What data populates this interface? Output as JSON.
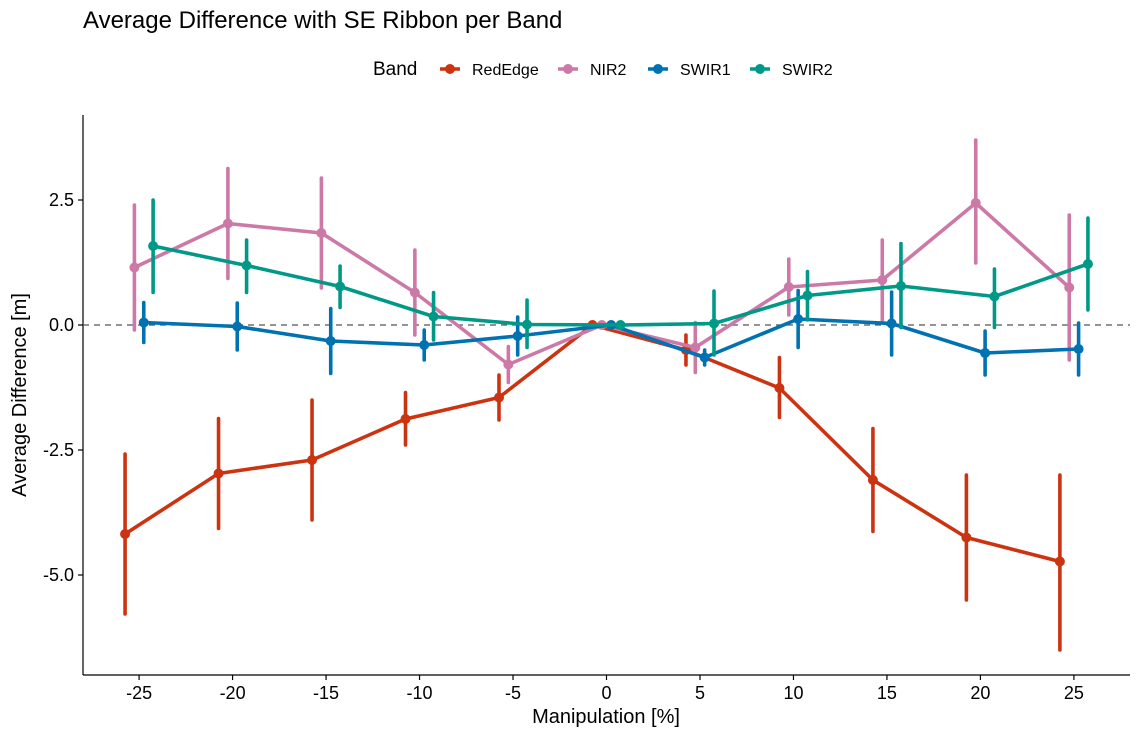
{
  "chart_data": {
    "type": "line",
    "title": "Average Difference with SE Ribbon per Band",
    "xlabel": "Manipulation [%]",
    "ylabel": "Average Difference [m]",
    "xlim": [
      -28,
      28
    ],
    "ylim": [
      -7,
      4.2
    ],
    "x_ticks": [
      -25,
      -20,
      -15,
      -10,
      -5,
      0,
      5,
      10,
      15,
      20,
      25
    ],
    "x_tick_labels": [
      "-25",
      "-20",
      "-15",
      "-10",
      "-5",
      "0",
      "5",
      "10",
      "15",
      "20",
      "25"
    ],
    "y_ticks": [
      2.5,
      0,
      -2.5,
      -5
    ],
    "y_tick_labels": [
      "2.5",
      "0.0",
      "-2.5",
      "-5.0"
    ],
    "reference_line": 0,
    "grid": false,
    "legend": {
      "title": "Band",
      "position": "top"
    },
    "series": [
      {
        "name": "RedEdge",
        "color": "#CC3311",
        "dodge": -0.75,
        "x": [
          -25,
          -20,
          -15,
          -10,
          -5,
          0,
          5,
          10,
          15,
          20,
          25
        ],
        "y": [
          -4.18,
          -2.97,
          -2.7,
          -1.88,
          -1.45,
          0.0,
          -0.5,
          -1.26,
          -3.1,
          -4.25,
          -4.73
        ],
        "lower": [
          -5.78,
          -4.07,
          -3.9,
          -2.4,
          -1.9,
          0.0,
          -0.8,
          -1.85,
          -4.13,
          -5.5,
          -6.5
        ],
        "upper": [
          -2.58,
          -1.87,
          -1.5,
          -1.35,
          -1.0,
          0.0,
          -0.2,
          -0.65,
          -2.07,
          -3.0,
          -3.0
        ]
      },
      {
        "name": "NIR2",
        "color": "#CC79A7",
        "dodge": -0.25,
        "x": [
          -25,
          -20,
          -15,
          -10,
          -5,
          0,
          5,
          10,
          15,
          20,
          25
        ],
        "y": [
          1.15,
          2.03,
          1.84,
          0.65,
          -0.79,
          0.0,
          -0.45,
          0.76,
          0.9,
          2.44,
          0.75
        ],
        "lower": [
          -0.1,
          0.93,
          0.74,
          -0.2,
          -1.15,
          0.0,
          -0.95,
          0.2,
          0.1,
          1.24,
          -0.7
        ],
        "upper": [
          2.4,
          3.13,
          2.94,
          1.5,
          -0.43,
          0.0,
          0.05,
          1.32,
          1.7,
          3.7,
          2.2
        ]
      },
      {
        "name": "SWIR1",
        "color": "#0072B2",
        "dodge": 0.25,
        "x": [
          -25,
          -20,
          -15,
          -10,
          -5,
          0,
          5,
          10,
          15,
          20,
          25
        ],
        "y": [
          0.05,
          -0.03,
          -0.32,
          -0.4,
          -0.22,
          0.0,
          -0.65,
          0.12,
          0.03,
          -0.56,
          -0.48
        ],
        "lower": [
          -0.35,
          -0.5,
          -0.97,
          -0.7,
          -0.6,
          0.0,
          -0.8,
          -0.45,
          -0.6,
          -1.0,
          -1.0
        ],
        "upper": [
          0.45,
          0.44,
          0.33,
          -0.1,
          0.16,
          0.0,
          -0.5,
          0.69,
          0.66,
          -0.12,
          0.04
        ]
      },
      {
        "name": "SWIR2",
        "color": "#009988",
        "dodge": 0.75,
        "x": [
          -25,
          -20,
          -15,
          -10,
          -5,
          0,
          5,
          10,
          15,
          20,
          25
        ],
        "y": [
          1.58,
          1.19,
          0.77,
          0.17,
          0.01,
          0.0,
          0.03,
          0.59,
          0.78,
          0.57,
          1.22
        ],
        "lower": [
          0.65,
          0.65,
          0.35,
          -0.3,
          -0.45,
          0.0,
          -0.6,
          0.1,
          -0.05,
          -0.05,
          0.3
        ],
        "upper": [
          2.5,
          1.7,
          1.18,
          0.65,
          0.5,
          0.0,
          0.68,
          1.07,
          1.63,
          1.12,
          2.14
        ]
      }
    ]
  }
}
